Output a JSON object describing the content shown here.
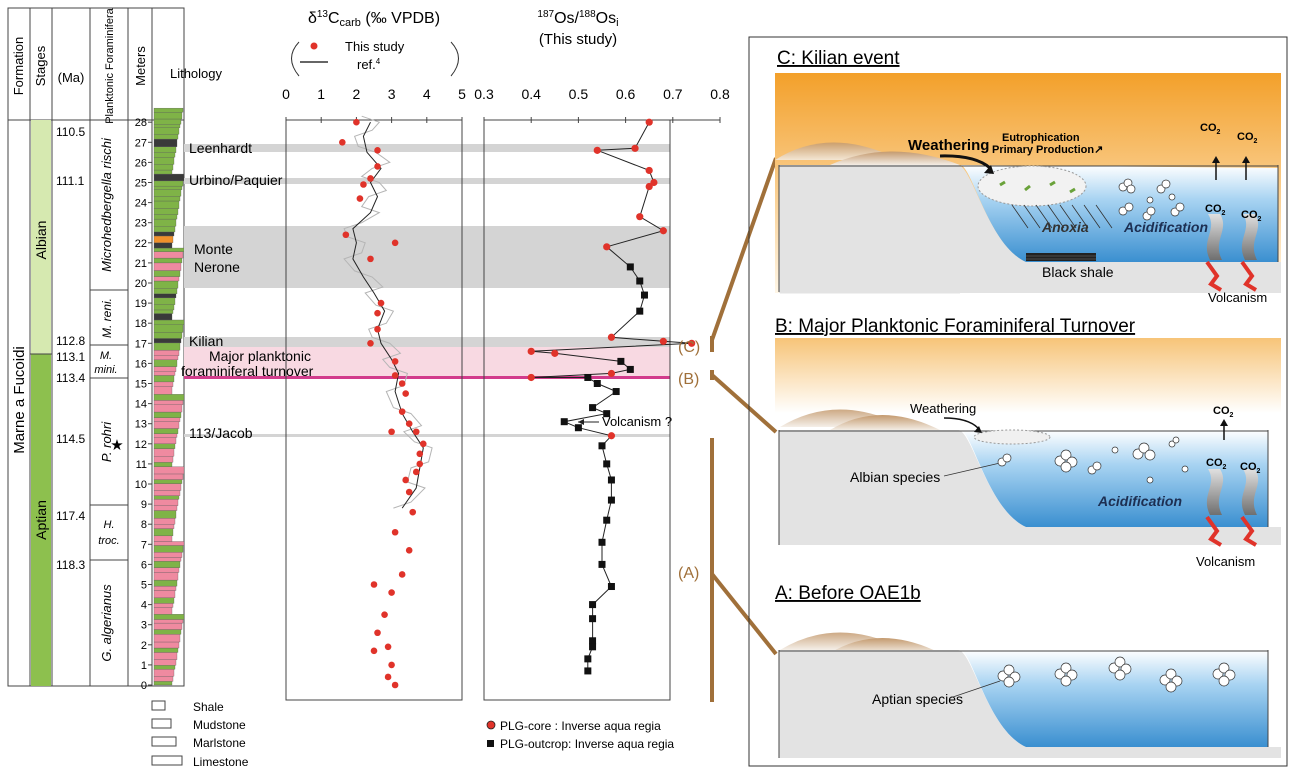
{
  "colors": {
    "albian": "#d6e9b0",
    "aptian": "#8dc04e",
    "shale_green": "#7fb347",
    "marl_pink": "#ef8aa0",
    "dark_bed": "#3a3a3a",
    "orange_bed": "#f0902a",
    "gray_band": "#d4d4d4",
    "pink_band": "#f8d9e2",
    "magenta_line": "#d23c8c",
    "red_marker": "#e0332a",
    "black_marker": "#111111",
    "brown_bracket": "#a0703a",
    "sea_blue": "#4aa0dc",
    "sky_orange": "#f3a02a"
  },
  "strat": {
    "headers": {
      "formation": "Formation",
      "stages": "Stages",
      "ma": "(Ma)",
      "foram": "Planktonic Foraminifera",
      "meters": "Meters",
      "lithology": "Lithology"
    },
    "formation_name": "Marne a Fucoidi",
    "stage_albian": "Albian",
    "stage_aptian": "Aptian",
    "ages": [
      "110.5",
      "111.1",
      "112.8",
      "113.1",
      "113.4",
      "114.5",
      "117.4",
      "118.3"
    ],
    "zones": [
      "Microhedbergella rischi",
      "M. reni.",
      "M. mini.",
      "P. rohri",
      "H. troc.",
      "G. algerianus"
    ],
    "meters": [
      "0",
      "1",
      "2",
      "3",
      "4",
      "5",
      "6",
      "7",
      "8",
      "9",
      "10",
      "11",
      "12",
      "13",
      "14",
      "15",
      "16",
      "17",
      "18",
      "19",
      "20",
      "21",
      "22",
      "23",
      "24",
      "25",
      "26",
      "27",
      "28"
    ]
  },
  "events": {
    "leenhardt": "Leenhardt",
    "urbino": "Urbino/Paquier",
    "monte": "Monte",
    "nerone": "Nerone",
    "kilian": "Kilian",
    "turnover1": "Major planktonic",
    "turnover2": "foraminiferal turnover",
    "jacob": "113/Jacob",
    "volcanism_q": "Volcanism ?"
  },
  "lithology_legend": [
    "Shale",
    "Mudstone",
    "Marlstone",
    "Limestone"
  ],
  "carbon_panel": {
    "title_main": "δ",
    "title_sup": "13",
    "title_rest": "C",
    "title_sub": "carb",
    "title_unit": " (‰ VPDB)",
    "legend_this": "This study",
    "legend_ref": "ref.",
    "legend_ref_sup": "4"
  },
  "os_panel": {
    "title_sup1": "187",
    "title_os1": "Os/",
    "title_sup2": "188",
    "title_os2": "Os",
    "title_sub": "i",
    "subtitle": "(This study)",
    "legend_core": "PLG-core : Inverse aqua regia",
    "legend_outcrop": "PLG-outcrop: Inverse aqua regia"
  },
  "brackets": {
    "c": "(C)",
    "b": "(B)",
    "a": "(A)"
  },
  "scenarios": {
    "c_title": "C: Kilian event",
    "c_weathering": "Weathering",
    "c_eutroph": "Eutrophication",
    "c_primary": "Primary Production↗",
    "c_anoxia": "Anoxia",
    "c_acid": "Acidification",
    "c_black_shale": "Black shale",
    "c_volcanism": "Volcanism",
    "b_title": "B: Major Planktonic Foraminiferal Turnover",
    "b_weathering": "Weathering",
    "b_albian": "Albian species",
    "b_acid": "Acidification",
    "b_volcanism": "Volcanism",
    "a_title": "A: Before OAE1b",
    "a_aptian": "Aptian species",
    "co2": "CO",
    "co2_sub": "2"
  },
  "chart_data": [
    {
      "type": "scatter",
      "title": "δ13Ccarb (‰ VPDB)",
      "xlabel": "δ13Ccarb (‰ VPDB)",
      "ylabel": "Meters",
      "xlim": [
        0,
        5
      ],
      "ylim": [
        0,
        28
      ],
      "x_ticks": [
        "0",
        "1",
        "2",
        "3",
        "4",
        "5"
      ],
      "series": [
        {
          "name": "This study",
          "points": [
            [
              2.0,
              28.0
            ],
            [
              1.6,
              27.0
            ],
            [
              2.6,
              26.6
            ],
            [
              2.6,
              25.8
            ],
            [
              2.4,
              25.2
            ],
            [
              2.2,
              24.9
            ],
            [
              2.1,
              24.2
            ],
            [
              1.7,
              22.4
            ],
            [
              3.1,
              22.0
            ],
            [
              2.4,
              21.2
            ],
            [
              2.7,
              19.0
            ],
            [
              2.6,
              18.5
            ],
            [
              2.6,
              17.7
            ],
            [
              2.4,
              17.0
            ],
            [
              3.1,
              16.1
            ],
            [
              3.1,
              15.4
            ],
            [
              3.3,
              15.0
            ],
            [
              3.4,
              14.5
            ],
            [
              3.3,
              13.6
            ],
            [
              3.5,
              13.0
            ],
            [
              3.0,
              12.6
            ],
            [
              3.7,
              12.6
            ],
            [
              3.9,
              12.0
            ],
            [
              3.8,
              11.5
            ],
            [
              3.8,
              11.0
            ],
            [
              3.7,
              10.6
            ],
            [
              3.4,
              10.2
            ],
            [
              3.5,
              9.6
            ],
            [
              3.6,
              8.6
            ],
            [
              3.1,
              7.6
            ],
            [
              3.5,
              6.7
            ],
            [
              2.5,
              5.0
            ],
            [
              3.3,
              5.5
            ],
            [
              3.0,
              4.6
            ],
            [
              2.8,
              3.5
            ],
            [
              2.6,
              2.6
            ],
            [
              2.9,
              1.9
            ],
            [
              2.5,
              1.7
            ],
            [
              3.0,
              1.0
            ],
            [
              2.9,
              0.4
            ],
            [
              3.1,
              0.0
            ]
          ]
        },
        {
          "name": "ref.4",
          "points": [
            [
              3.3,
              8.8
            ],
            [
              3.7,
              9.8
            ],
            [
              3.8,
              10.8
            ],
            [
              3.9,
              11.8
            ],
            [
              3.6,
              12.6
            ],
            [
              3.3,
              13.5
            ],
            [
              3.1,
              14.6
            ],
            [
              3.2,
              15.5
            ],
            [
              3.0,
              16.2
            ],
            [
              2.7,
              17.0
            ],
            [
              2.6,
              17.7
            ],
            [
              2.8,
              18.6
            ],
            [
              2.5,
              19.5
            ],
            [
              2.2,
              20.3
            ],
            [
              1.9,
              21.2
            ],
            [
              2.0,
              22.0
            ],
            [
              1.9,
              22.7
            ],
            [
              2.4,
              23.5
            ],
            [
              2.6,
              24.3
            ],
            [
              2.4,
              25.0
            ],
            [
              2.7,
              25.7
            ],
            [
              2.3,
              26.5
            ],
            [
              2.2,
              27.3
            ],
            [
              2.4,
              28.0
            ]
          ]
        }
      ]
    },
    {
      "type": "line",
      "title": "187Os/188Osi (This study)",
      "ylabel": "Meters",
      "xlim": [
        0.3,
        0.8
      ],
      "ylim": [
        0,
        28
      ],
      "x_ticks": [
        "0.3",
        "0.4",
        "0.5",
        "0.6",
        "0.7",
        "0.8"
      ],
      "series": [
        {
          "name": "PLG-core : Inverse aqua regia",
          "points": [
            [
              0.65,
              28.0
            ],
            [
              0.54,
              26.6
            ],
            [
              0.62,
              26.7
            ],
            [
              0.65,
              25.6
            ],
            [
              0.66,
              25.0
            ],
            [
              0.65,
              24.8
            ],
            [
              0.63,
              23.3
            ],
            [
              0.68,
              22.6
            ],
            [
              0.56,
              21.8
            ],
            [
              0.57,
              17.3
            ],
            [
              0.74,
              17.0
            ],
            [
              0.68,
              17.1
            ],
            [
              0.4,
              16.6
            ],
            [
              0.45,
              16.5
            ],
            [
              0.4,
              15.3
            ],
            [
              0.57,
              15.5
            ],
            [
              0.57,
              12.4
            ]
          ]
        },
        {
          "name": "PLG-outcrop: Inverse aqua regia",
          "points": [
            [
              0.61,
              20.8
            ],
            [
              0.63,
              20.1
            ],
            [
              0.64,
              19.4
            ],
            [
              0.63,
              18.6
            ],
            [
              0.59,
              16.1
            ],
            [
              0.61,
              15.7
            ],
            [
              0.52,
              15.3
            ],
            [
              0.54,
              15.0
            ],
            [
              0.58,
              14.6
            ],
            [
              0.53,
              13.8
            ],
            [
              0.56,
              13.5
            ],
            [
              0.5,
              12.8
            ],
            [
              0.47,
              13.1
            ],
            [
              0.55,
              11.9
            ],
            [
              0.56,
              11.0
            ],
            [
              0.57,
              10.2
            ],
            [
              0.57,
              9.2
            ],
            [
              0.56,
              8.2
            ],
            [
              0.55,
              7.1
            ],
            [
              0.55,
              6.0
            ],
            [
              0.57,
              4.9
            ],
            [
              0.53,
              4.0
            ],
            [
              0.53,
              3.3
            ],
            [
              0.53,
              2.2
            ],
            [
              0.53,
              1.9
            ],
            [
              0.52,
              1.3
            ],
            [
              0.52,
              0.7
            ]
          ]
        }
      ]
    }
  ]
}
